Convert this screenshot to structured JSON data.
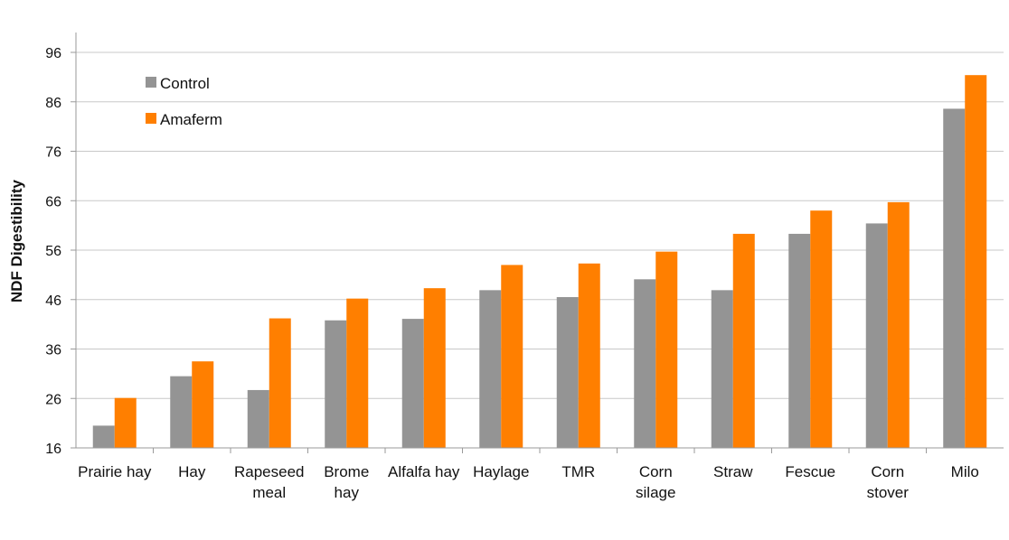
{
  "chart_data": {
    "type": "bar",
    "title": "",
    "xlabel": "",
    "ylabel": "NDF Digestibility",
    "ylim": [
      16,
      96
    ],
    "yticks": [
      16,
      26,
      36,
      46,
      56,
      66,
      76,
      86,
      96
    ],
    "grid": true,
    "legend_position": "top-left",
    "categories": [
      [
        "Prairie hay"
      ],
      [
        "Hay"
      ],
      [
        "Rapeseed",
        "meal"
      ],
      [
        "Brome",
        "hay"
      ],
      [
        "Alfalfa hay"
      ],
      [
        "Haylage"
      ],
      [
        "TMR"
      ],
      [
        "Corn",
        "silage"
      ],
      [
        "Straw"
      ],
      [
        "Fescue"
      ],
      [
        "Corn",
        "stover"
      ],
      [
        "Milo"
      ]
    ],
    "series": [
      {
        "name": "Control",
        "color": "#949494",
        "values": [
          20.5,
          30.5,
          27.7,
          41.8,
          42.1,
          47.9,
          46.5,
          50.1,
          47.9,
          59.3,
          61.4,
          84.6
        ]
      },
      {
        "name": "Amaferm",
        "color": "#ff7f00",
        "values": [
          26.1,
          33.5,
          42.2,
          46.2,
          48.3,
          53.0,
          53.3,
          55.7,
          59.3,
          64.0,
          65.7,
          91.4
        ]
      }
    ]
  }
}
